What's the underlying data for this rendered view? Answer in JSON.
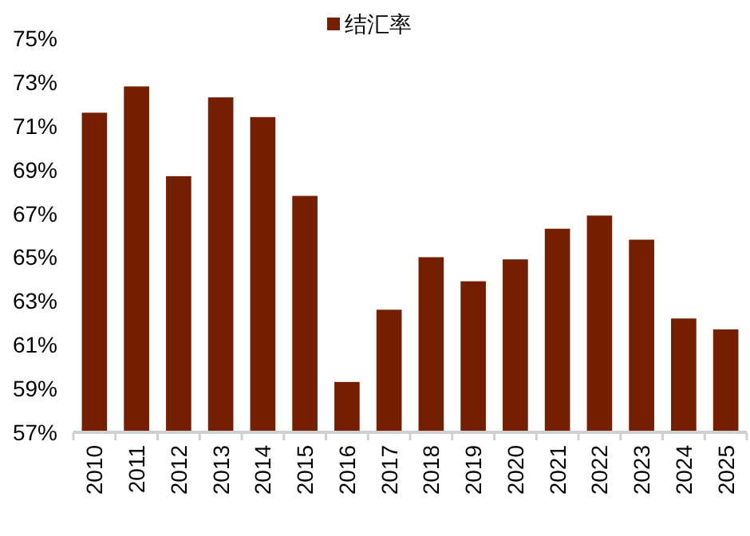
{
  "chart_data": {
    "type": "bar",
    "categories": [
      "2010",
      "2011",
      "2012",
      "2013",
      "2014",
      "2015",
      "2016",
      "2017",
      "2018",
      "2019",
      "2020",
      "2021",
      "2022",
      "2023",
      "2024",
      "2025"
    ],
    "series": [
      {
        "name": "结汇率",
        "color": "#741f02",
        "values": [
          71.6,
          72.8,
          68.7,
          72.3,
          71.4,
          67.8,
          59.3,
          62.6,
          65.0,
          63.9,
          64.9,
          66.3,
          66.9,
          65.8,
          62.2,
          61.7
        ]
      }
    ],
    "ylim": [
      57,
      75
    ],
    "yticks": [
      {
        "value": 57,
        "label": "57%"
      },
      {
        "value": 59,
        "label": "59%"
      },
      {
        "value": 61,
        "label": "61%"
      },
      {
        "value": 63,
        "label": "63%"
      },
      {
        "value": 65,
        "label": "65%"
      },
      {
        "value": 67,
        "label": "67%"
      },
      {
        "value": 69,
        "label": "69%"
      },
      {
        "value": 71,
        "label": "71%"
      },
      {
        "value": 73,
        "label": "73%"
      },
      {
        "value": 75,
        "label": "75%"
      }
    ],
    "grid": false,
    "legend": "top"
  }
}
